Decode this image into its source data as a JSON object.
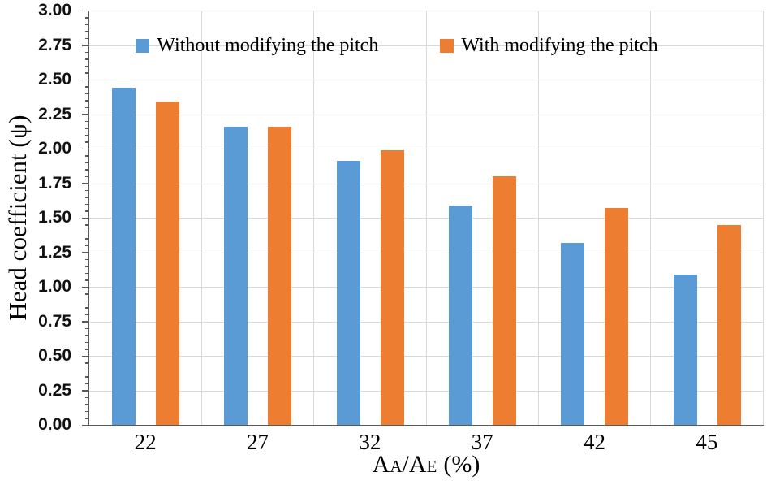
{
  "chart_data": {
    "type": "bar",
    "categories": [
      "22",
      "27",
      "32",
      "37",
      "42",
      "45"
    ],
    "series": [
      {
        "name": "Without modifying the pitch",
        "color": "#5B9BD5",
        "values": [
          2.44,
          2.16,
          1.91,
          1.59,
          1.32,
          1.09
        ]
      },
      {
        "name": "With modifying the pitch",
        "color": "#ED7D31",
        "values": [
          2.34,
          2.16,
          1.99,
          1.8,
          1.57,
          1.45
        ]
      }
    ],
    "xlabel": "AA/AE (%)",
    "xlabel_parts": {
      "p1": "A",
      "p2": "A",
      "p3": "/A",
      "p4": "E",
      "p5": "(%)"
    },
    "ylabel": "Head coefficient (ψ)",
    "ylim": [
      0,
      3.0
    ],
    "ytick_step": 0.25,
    "yticks": [
      "0.00",
      "0.25",
      "0.50",
      "0.75",
      "1.00",
      "1.25",
      "1.50",
      "1.75",
      "2.00",
      "2.25",
      "2.50",
      "2.75",
      "3.00"
    ],
    "grid": true,
    "legend_position": "top-center-inside"
  },
  "colors": {
    "series_blue": "#5B9BD5",
    "series_orange": "#ED7D31",
    "gridline": "#D9D9D9",
    "axis": "#595959",
    "text": "#000000"
  }
}
